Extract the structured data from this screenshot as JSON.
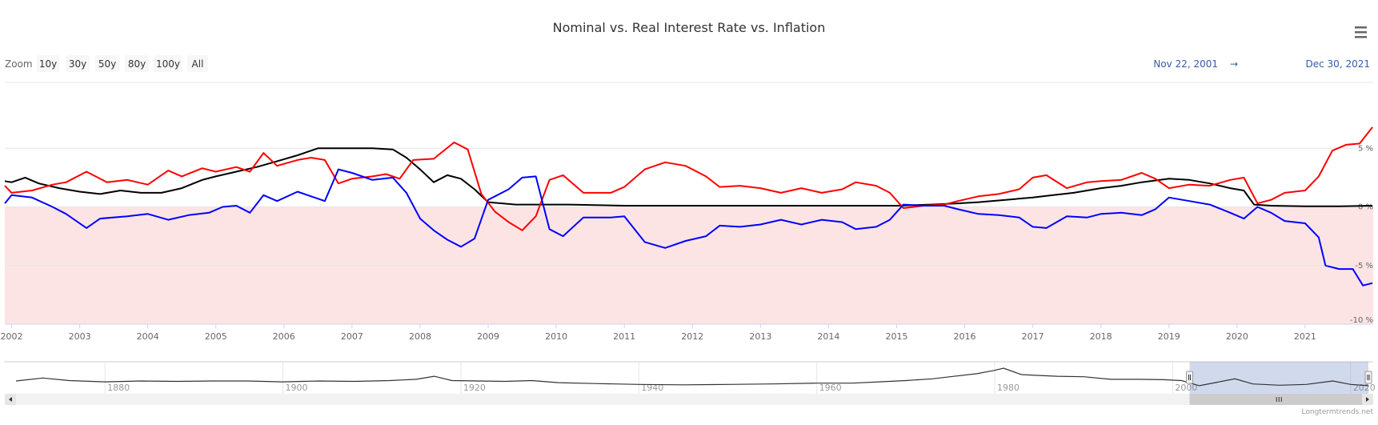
{
  "chart_data": {
    "type": "line",
    "title": "Nominal vs. Real Interest Rate vs. Inflation",
    "xlabel": "",
    "ylabel": "",
    "xlim": [
      2001.9,
      2022.0
    ],
    "ylim": [
      -10,
      10
    ],
    "x_ticks": [
      "2002",
      "2003",
      "2004",
      "2005",
      "2006",
      "2007",
      "2008",
      "2009",
      "2010",
      "2011",
      "2012",
      "2013",
      "2014",
      "2015",
      "2016",
      "2017",
      "2018",
      "2019",
      "2020",
      "2021"
    ],
    "y_ticks": [
      "5 %",
      "0 %",
      "-5 %",
      "-10 %"
    ],
    "y_tick_values": [
      5,
      0,
      -5,
      -10
    ],
    "shaded_band": {
      "from": -10,
      "to": 0,
      "color": "#fde4e4"
    },
    "series": [
      {
        "color": "#000000",
        "points": [
          [
            2001.9,
            2.2
          ],
          [
            2002.0,
            2.1
          ],
          [
            2002.2,
            2.5
          ],
          [
            2002.4,
            2.0
          ],
          [
            2002.7,
            1.6
          ],
          [
            2003.0,
            1.3
          ],
          [
            2003.3,
            1.1
          ],
          [
            2003.6,
            1.4
          ],
          [
            2003.9,
            1.2
          ],
          [
            2004.2,
            1.2
          ],
          [
            2004.5,
            1.6
          ],
          [
            2004.8,
            2.3
          ],
          [
            2005.0,
            2.6
          ],
          [
            2005.3,
            3.0
          ],
          [
            2005.6,
            3.4
          ],
          [
            2005.9,
            3.9
          ],
          [
            2006.2,
            4.4
          ],
          [
            2006.5,
            5.0
          ],
          [
            2006.7,
            5.0
          ],
          [
            2007.0,
            5.0
          ],
          [
            2007.3,
            5.0
          ],
          [
            2007.6,
            4.9
          ],
          [
            2007.8,
            4.2
          ],
          [
            2008.0,
            3.2
          ],
          [
            2008.2,
            2.1
          ],
          [
            2008.4,
            2.7
          ],
          [
            2008.6,
            2.4
          ],
          [
            2008.8,
            1.5
          ],
          [
            2009.0,
            0.4
          ],
          [
            2009.4,
            0.2
          ],
          [
            2009.8,
            0.2
          ],
          [
            2010.2,
            0.2
          ],
          [
            2011.0,
            0.1
          ],
          [
            2012.0,
            0.1
          ],
          [
            2013.0,
            0.1
          ],
          [
            2014.0,
            0.1
          ],
          [
            2015.0,
            0.1
          ],
          [
            2015.5,
            0.2
          ],
          [
            2015.9,
            0.3
          ],
          [
            2016.2,
            0.4
          ],
          [
            2016.6,
            0.6
          ],
          [
            2017.0,
            0.8
          ],
          [
            2017.3,
            1.0
          ],
          [
            2017.6,
            1.2
          ],
          [
            2018.0,
            1.6
          ],
          [
            2018.3,
            1.8
          ],
          [
            2018.6,
            2.1
          ],
          [
            2019.0,
            2.4
          ],
          [
            2019.3,
            2.3
          ],
          [
            2019.6,
            2.0
          ],
          [
            2019.9,
            1.6
          ],
          [
            2020.1,
            1.4
          ],
          [
            2020.25,
            0.2
          ],
          [
            2020.5,
            0.1
          ],
          [
            2021.0,
            0.05
          ],
          [
            2021.5,
            0.05
          ],
          [
            2021.99,
            0.1
          ]
        ]
      },
      {
        "color": "#ff0000",
        "points": [
          [
            2001.9,
            1.8
          ],
          [
            2002.0,
            1.2
          ],
          [
            2002.3,
            1.4
          ],
          [
            2002.6,
            1.9
          ],
          [
            2002.8,
            2.1
          ],
          [
            2003.1,
            3.0
          ],
          [
            2003.4,
            2.1
          ],
          [
            2003.7,
            2.3
          ],
          [
            2004.0,
            1.9
          ],
          [
            2004.3,
            3.1
          ],
          [
            2004.5,
            2.6
          ],
          [
            2004.8,
            3.3
          ],
          [
            2005.0,
            3.0
          ],
          [
            2005.3,
            3.4
          ],
          [
            2005.5,
            3.0
          ],
          [
            2005.7,
            4.6
          ],
          [
            2005.9,
            3.5
          ],
          [
            2006.2,
            4.0
          ],
          [
            2006.4,
            4.2
          ],
          [
            2006.6,
            4.0
          ],
          [
            2006.8,
            2.0
          ],
          [
            2007.0,
            2.4
          ],
          [
            2007.3,
            2.6
          ],
          [
            2007.5,
            2.8
          ],
          [
            2007.7,
            2.4
          ],
          [
            2007.9,
            4.0
          ],
          [
            2008.2,
            4.1
          ],
          [
            2008.5,
            5.5
          ],
          [
            2008.7,
            4.9
          ],
          [
            2008.9,
            1.1
          ],
          [
            2009.1,
            -0.4
          ],
          [
            2009.3,
            -1.3
          ],
          [
            2009.5,
            -2.0
          ],
          [
            2009.7,
            -0.8
          ],
          [
            2009.9,
            2.3
          ],
          [
            2010.1,
            2.7
          ],
          [
            2010.4,
            1.2
          ],
          [
            2010.8,
            1.2
          ],
          [
            2011.0,
            1.7
          ],
          [
            2011.3,
            3.2
          ],
          [
            2011.6,
            3.8
          ],
          [
            2011.9,
            3.5
          ],
          [
            2012.2,
            2.6
          ],
          [
            2012.4,
            1.7
          ],
          [
            2012.7,
            1.8
          ],
          [
            2013.0,
            1.6
          ],
          [
            2013.3,
            1.2
          ],
          [
            2013.6,
            1.6
          ],
          [
            2013.9,
            1.2
          ],
          [
            2014.2,
            1.5
          ],
          [
            2014.4,
            2.1
          ],
          [
            2014.7,
            1.8
          ],
          [
            2014.9,
            1.2
          ],
          [
            2015.1,
            -0.1
          ],
          [
            2015.4,
            0.1
          ],
          [
            2015.7,
            0.2
          ],
          [
            2015.9,
            0.5
          ],
          [
            2016.2,
            0.9
          ],
          [
            2016.5,
            1.1
          ],
          [
            2016.8,
            1.5
          ],
          [
            2017.0,
            2.5
          ],
          [
            2017.2,
            2.7
          ],
          [
            2017.5,
            1.6
          ],
          [
            2017.8,
            2.1
          ],
          [
            2018.0,
            2.2
          ],
          [
            2018.3,
            2.3
          ],
          [
            2018.6,
            2.9
          ],
          [
            2018.8,
            2.4
          ],
          [
            2019.0,
            1.6
          ],
          [
            2019.3,
            1.9
          ],
          [
            2019.6,
            1.8
          ],
          [
            2019.9,
            2.3
          ],
          [
            2020.1,
            2.5
          ],
          [
            2020.3,
            0.3
          ],
          [
            2020.5,
            0.6
          ],
          [
            2020.7,
            1.2
          ],
          [
            2021.0,
            1.4
          ],
          [
            2021.2,
            2.6
          ],
          [
            2021.4,
            4.8
          ],
          [
            2021.6,
            5.3
          ],
          [
            2021.8,
            5.4
          ],
          [
            2021.99,
            6.8
          ]
        ]
      },
      {
        "color": "#0000ff",
        "points": [
          [
            2001.9,
            0.3
          ],
          [
            2002.0,
            1.0
          ],
          [
            2002.3,
            0.8
          ],
          [
            2002.6,
            0.0
          ],
          [
            2002.8,
            -0.6
          ],
          [
            2003.1,
            -1.8
          ],
          [
            2003.3,
            -1.0
          ],
          [
            2003.7,
            -0.8
          ],
          [
            2004.0,
            -0.6
          ],
          [
            2004.3,
            -1.1
          ],
          [
            2004.6,
            -0.7
          ],
          [
            2004.9,
            -0.5
          ],
          [
            2005.1,
            0.0
          ],
          [
            2005.3,
            0.1
          ],
          [
            2005.5,
            -0.5
          ],
          [
            2005.7,
            1.0
          ],
          [
            2005.9,
            0.5
          ],
          [
            2006.2,
            1.3
          ],
          [
            2006.4,
            0.9
          ],
          [
            2006.6,
            0.5
          ],
          [
            2006.8,
            3.2
          ],
          [
            2007.0,
            2.9
          ],
          [
            2007.3,
            2.3
          ],
          [
            2007.6,
            2.5
          ],
          [
            2007.8,
            1.2
          ],
          [
            2008.0,
            -1.0
          ],
          [
            2008.2,
            -2.0
          ],
          [
            2008.4,
            -2.8
          ],
          [
            2008.6,
            -3.4
          ],
          [
            2008.8,
            -2.7
          ],
          [
            2009.0,
            0.6
          ],
          [
            2009.3,
            1.5
          ],
          [
            2009.5,
            2.5
          ],
          [
            2009.7,
            2.6
          ],
          [
            2009.9,
            -1.9
          ],
          [
            2010.1,
            -2.5
          ],
          [
            2010.4,
            -0.9
          ],
          [
            2010.8,
            -0.9
          ],
          [
            2011.0,
            -0.8
          ],
          [
            2011.3,
            -3.0
          ],
          [
            2011.6,
            -3.5
          ],
          [
            2011.9,
            -2.9
          ],
          [
            2012.2,
            -2.5
          ],
          [
            2012.4,
            -1.6
          ],
          [
            2012.7,
            -1.7
          ],
          [
            2013.0,
            -1.5
          ],
          [
            2013.3,
            -1.1
          ],
          [
            2013.6,
            -1.5
          ],
          [
            2013.9,
            -1.1
          ],
          [
            2014.2,
            -1.3
          ],
          [
            2014.4,
            -1.9
          ],
          [
            2014.7,
            -1.7
          ],
          [
            2014.9,
            -1.1
          ],
          [
            2015.1,
            0.2
          ],
          [
            2015.4,
            0.1
          ],
          [
            2015.7,
            0.1
          ],
          [
            2015.9,
            -0.2
          ],
          [
            2016.2,
            -0.6
          ],
          [
            2016.5,
            -0.7
          ],
          [
            2016.8,
            -0.9
          ],
          [
            2017.0,
            -1.7
          ],
          [
            2017.2,
            -1.8
          ],
          [
            2017.5,
            -0.8
          ],
          [
            2017.8,
            -0.9
          ],
          [
            2018.0,
            -0.6
          ],
          [
            2018.3,
            -0.5
          ],
          [
            2018.6,
            -0.7
          ],
          [
            2018.8,
            -0.2
          ],
          [
            2019.0,
            0.8
          ],
          [
            2019.3,
            0.5
          ],
          [
            2019.6,
            0.2
          ],
          [
            2019.9,
            -0.5
          ],
          [
            2020.1,
            -1.0
          ],
          [
            2020.3,
            0.0
          ],
          [
            2020.5,
            -0.5
          ],
          [
            2020.7,
            -1.2
          ],
          [
            2021.0,
            -1.4
          ],
          [
            2021.2,
            -2.6
          ],
          [
            2021.3,
            -5.0
          ],
          [
            2021.5,
            -5.3
          ],
          [
            2021.7,
            -5.3
          ],
          [
            2021.85,
            -6.7
          ],
          [
            2021.99,
            -6.5
          ]
        ]
      }
    ],
    "navigator": {
      "x_ticks": [
        "1880",
        "1900",
        "1920",
        "1940",
        "1960",
        "1980",
        "2000",
        "2020"
      ],
      "tick_years": [
        1880,
        1900,
        1920,
        1940,
        1960,
        1980,
        2000,
        2020
      ],
      "xlim": [
        1870,
        2022
      ],
      "selected_range": [
        2001.9,
        2022.0
      ],
      "series_points": [
        [
          1870,
          0.5
        ],
        [
          1873,
          1.2
        ],
        [
          1876,
          0.6
        ],
        [
          1880,
          0.3
        ],
        [
          1884,
          0.5
        ],
        [
          1888,
          0.4
        ],
        [
          1892,
          0.5
        ],
        [
          1896,
          0.5
        ],
        [
          1900,
          0.3
        ],
        [
          1904,
          0.5
        ],
        [
          1908,
          0.4
        ],
        [
          1912,
          0.6
        ],
        [
          1915,
          0.9
        ],
        [
          1917,
          1.6
        ],
        [
          1919,
          0.6
        ],
        [
          1922,
          0.5
        ],
        [
          1925,
          0.4
        ],
        [
          1928,
          0.6
        ],
        [
          1931,
          0.1
        ],
        [
          1935,
          -0.1
        ],
        [
          1940,
          -0.3
        ],
        [
          1945,
          -0.4
        ],
        [
          1950,
          -0.3
        ],
        [
          1955,
          -0.2
        ],
        [
          1960,
          0.0
        ],
        [
          1964,
          0.0
        ],
        [
          1967,
          0.3
        ],
        [
          1970,
          0.6
        ],
        [
          1973,
          1.0
        ],
        [
          1975,
          1.5
        ],
        [
          1978,
          2.2
        ],
        [
          1980,
          3.0
        ],
        [
          1981,
          3.5
        ],
        [
          1983,
          2.0
        ],
        [
          1985,
          1.8
        ],
        [
          1987,
          1.6
        ],
        [
          1990,
          1.5
        ],
        [
          1993,
          0.9
        ],
        [
          1996,
          0.9
        ],
        [
          1999,
          0.8
        ],
        [
          2001,
          0.6
        ],
        [
          2003,
          -0.6
        ],
        [
          2005,
          0.2
        ],
        [
          2007,
          1.0
        ],
        [
          2009,
          -0.2
        ],
        [
          2012,
          -0.5
        ],
        [
          2015,
          -0.3
        ],
        [
          2018,
          0.5
        ],
        [
          2020,
          -0.3
        ],
        [
          2022,
          -0.6
        ]
      ]
    }
  },
  "ui": {
    "zoom_label": "Zoom",
    "zoom_buttons": [
      "10y",
      "30y",
      "50y",
      "80y",
      "100y",
      "All"
    ],
    "range_from": "Nov 22, 2001",
    "range_arrow": "→",
    "range_to": "Dec 30, 2021",
    "credit": "Longtermtrends.net",
    "menu_icon": "hamburger-menu-icon"
  }
}
